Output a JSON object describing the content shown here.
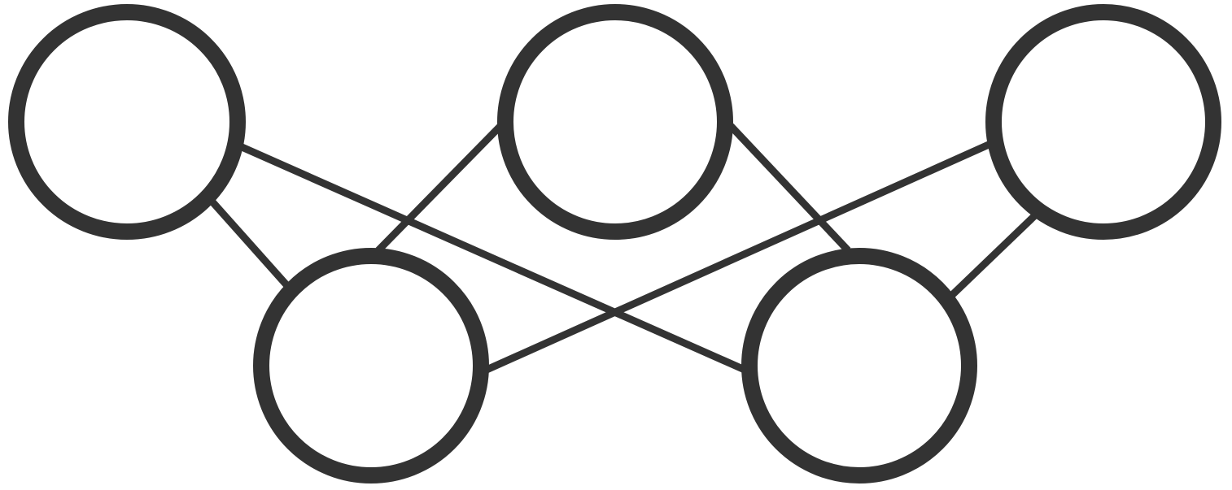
{
  "diagram": {
    "type": "graph",
    "directed": false,
    "colors": {
      "stroke": "#333333",
      "fill": "#ffffff",
      "background": "#ffffff"
    },
    "nodes": [
      {
        "id": "top-left",
        "label": ""
      },
      {
        "id": "top-center",
        "label": ""
      },
      {
        "id": "top-right",
        "label": ""
      },
      {
        "id": "bottom-left",
        "label": ""
      },
      {
        "id": "bottom-right",
        "label": ""
      }
    ],
    "edges": [
      {
        "from": "top-left",
        "to": "bottom-left"
      },
      {
        "from": "top-left",
        "to": "bottom-right"
      },
      {
        "from": "top-center",
        "to": "bottom-left"
      },
      {
        "from": "top-center",
        "to": "bottom-right"
      },
      {
        "from": "top-right",
        "to": "bottom-left"
      },
      {
        "from": "top-right",
        "to": "bottom-right"
      }
    ]
  }
}
